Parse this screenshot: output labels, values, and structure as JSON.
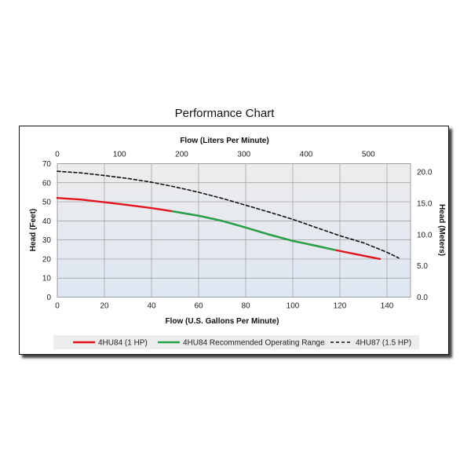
{
  "chart_data": {
    "type": "line",
    "title": "Performance Chart",
    "xlabel": "Flow (U.S. Gallons Per Minute)",
    "x2label": "Flow (Liters Per Minute)",
    "ylabel": "Head (Feet)",
    "y2label": "Head (Meters)",
    "xlim": [
      0,
      150
    ],
    "ylim": [
      0,
      70
    ],
    "x2lim": [
      0,
      567.8
    ],
    "y2lim": [
      0,
      21.34
    ],
    "x_ticks": [
      "0",
      "20",
      "40",
      "60",
      "80",
      "100",
      "120",
      "140"
    ],
    "y_ticks": [
      "0",
      "10",
      "20",
      "30",
      "40",
      "50",
      "60",
      "70"
    ],
    "x2_ticks": [
      "0",
      "100",
      "200",
      "300",
      "400",
      "500"
    ],
    "y2_ticks": [
      "0.0",
      "5.0",
      "10.0",
      "15.0",
      "20.0"
    ],
    "grid": true,
    "legend_position": "bottom",
    "series": [
      {
        "name": "4HU84 (1 HP)",
        "color": "#e3141b",
        "style": "solid",
        "points": [
          [
            0,
            52
          ],
          [
            10,
            51.2
          ],
          [
            20,
            49.8
          ],
          [
            30,
            48.3
          ],
          [
            40,
            46.7
          ],
          [
            49,
            45
          ],
          [
            60,
            42.7
          ],
          [
            70,
            40
          ],
          [
            80,
            36.5
          ],
          [
            90,
            32.8
          ],
          [
            100,
            29.5
          ],
          [
            110,
            26.9
          ],
          [
            118,
            24.7
          ],
          [
            128,
            22.2
          ],
          [
            137,
            20
          ]
        ]
      },
      {
        "name": "4HU84 Recommended Operating Range",
        "color": "#1fa64a",
        "style": "solid",
        "points": [
          [
            49,
            45
          ],
          [
            60,
            42.7
          ],
          [
            70,
            40
          ],
          [
            80,
            36.5
          ],
          [
            90,
            32.8
          ],
          [
            100,
            29.5
          ],
          [
            110,
            26.9
          ],
          [
            118,
            24.7
          ]
        ]
      },
      {
        "name": "4HU87 (1.5 HP)",
        "color": "#111111",
        "style": "dashed",
        "points": [
          [
            0,
            66
          ],
          [
            10,
            65.2
          ],
          [
            20,
            63.8
          ],
          [
            30,
            62.2
          ],
          [
            40,
            60.3
          ],
          [
            50,
            57.8
          ],
          [
            60,
            55
          ],
          [
            70,
            51.8
          ],
          [
            80,
            48.2
          ],
          [
            90,
            44.6
          ],
          [
            100,
            40.8
          ],
          [
            110,
            36.5
          ],
          [
            120,
            32.2
          ],
          [
            130,
            28.5
          ],
          [
            140,
            23.5
          ],
          [
            145,
            20.5
          ]
        ]
      }
    ]
  }
}
